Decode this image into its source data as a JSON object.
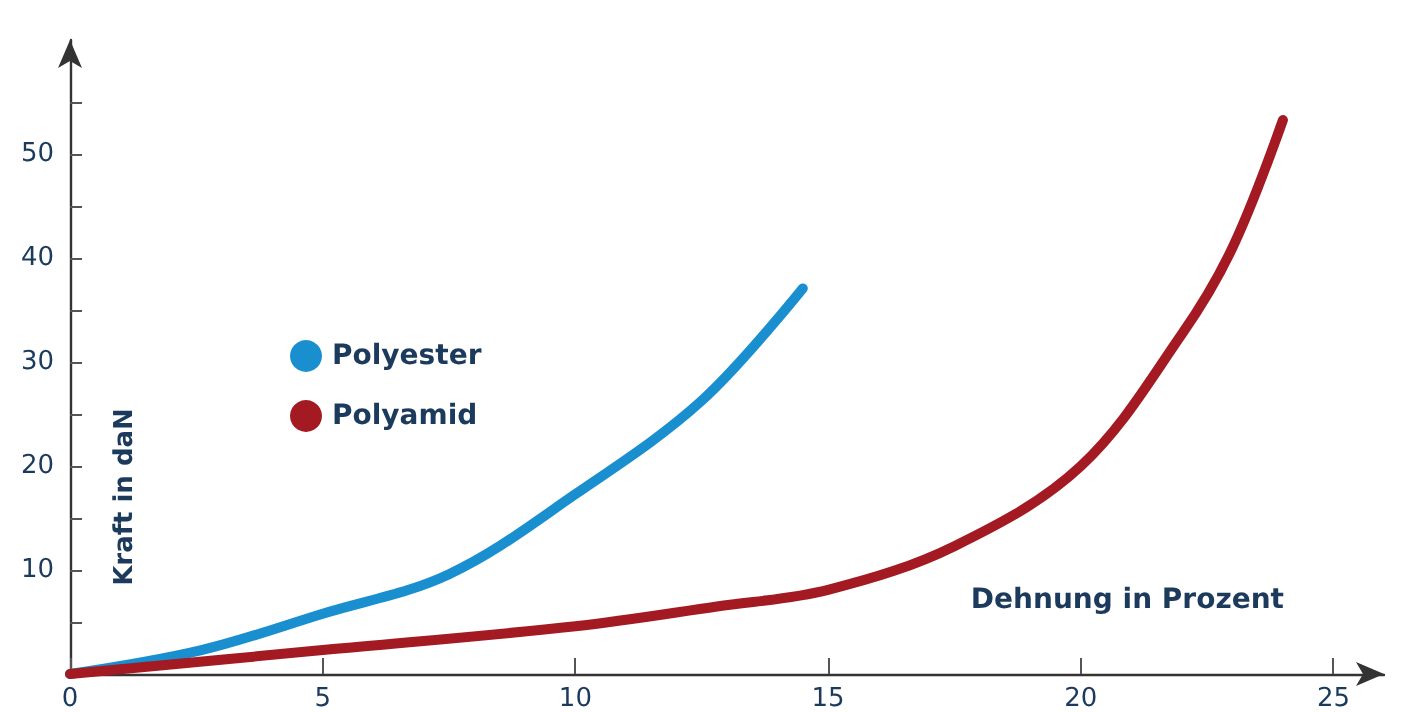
{
  "chart_data": {
    "type": "line",
    "xlabel": "Dehnung in Prozent",
    "ylabel": "Kraft in daN",
    "xlim": [
      0,
      26
    ],
    "ylim": [
      0,
      61
    ],
    "xticks": [
      0,
      5,
      10,
      15,
      20,
      25
    ],
    "yticks": [
      {
        "value": 0,
        "label": null
      },
      {
        "value": 5,
        "label": null
      },
      10,
      {
        "value": 15,
        "label": null
      },
      20,
      {
        "value": 25,
        "label": null
      },
      30,
      {
        "value": 35,
        "label": null
      },
      40,
      {
        "value": 45,
        "label": null
      },
      50,
      {
        "value": 55,
        "label": null
      }
    ],
    "grid": false,
    "legend": "left",
    "marker": "none",
    "line_style": "solid",
    "series": [
      {
        "name": "Polyester",
        "color": "#1a8fd0",
        "x": [
          0,
          2.6,
          5,
          7.5,
          10,
          12.5,
          14.5
        ],
        "values": [
          0,
          2.3,
          5.8,
          9.6,
          17.3,
          26.3,
          37.1
        ]
      },
      {
        "name": "Polyamid",
        "color": "#a31a22",
        "x": [
          0,
          5,
          10,
          12.8,
          15,
          17.5,
          20,
          22,
          23,
          24
        ],
        "values": [
          0,
          2.3,
          4.6,
          6.5,
          8.1,
          12.3,
          20,
          32.7,
          41,
          53.3
        ]
      }
    ]
  }
}
